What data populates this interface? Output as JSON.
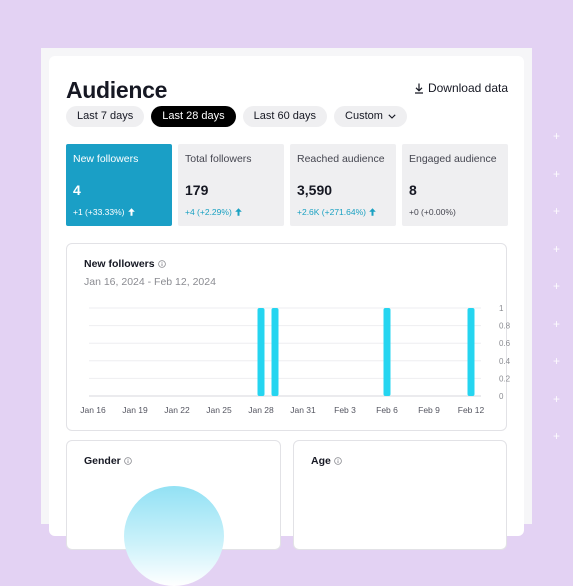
{
  "page": {
    "title": "Audience",
    "download_label": "Download data"
  },
  "date_ranges": [
    {
      "label": "Last 7 days",
      "active": false
    },
    {
      "label": "Last 28 days",
      "active": true
    },
    {
      "label": "Last 60 days",
      "active": false
    },
    {
      "label": "Custom",
      "active": false
    }
  ],
  "metrics": [
    {
      "label": "New followers",
      "value": "4",
      "change": "+1 (+33.33%)",
      "trend": "up",
      "active": true
    },
    {
      "label": "Total followers",
      "value": "179",
      "change": "+4 (+2.29%)",
      "trend": "up",
      "active": false
    },
    {
      "label": "Reached audience",
      "value": "3,590",
      "change": "+2.6K (+271.64%)",
      "trend": "up",
      "active": false
    },
    {
      "label": "Engaged audience",
      "value": "8",
      "change": "+0 (+0.00%)",
      "trend": "none",
      "active": false
    }
  ],
  "chart_card": {
    "title": "New followers",
    "date_range": "Jan 16, 2024 - Feb 12, 2024"
  },
  "chart_data": {
    "type": "bar",
    "x_tick_labels": [
      "Jan 16",
      "Jan 19",
      "Jan 22",
      "Jan 25",
      "Jan 28",
      "Jan 31",
      "Feb 3",
      "Feb 6",
      "Feb 9",
      "Feb 12"
    ],
    "y_tick_labels": [
      "1",
      "0.8",
      "0.6",
      "0.4",
      "0.2",
      "0"
    ],
    "ylim": [
      0,
      1
    ],
    "grid": true,
    "series": [
      {
        "values": [
          {
            "date": "Jan 28",
            "value": 1
          },
          {
            "date": "Jan 29",
            "value": 1
          },
          {
            "date": "Feb 6",
            "value": 1
          },
          {
            "date": "Feb 12",
            "value": 1
          }
        ]
      }
    ],
    "bar_color": "#25d5f0"
  },
  "sections": {
    "gender_title": "Gender",
    "age_title": "Age"
  },
  "colors": {
    "accent": "#1a9fc6",
    "bar": "#25d5f0",
    "trend_up": "#1aa1c2"
  }
}
